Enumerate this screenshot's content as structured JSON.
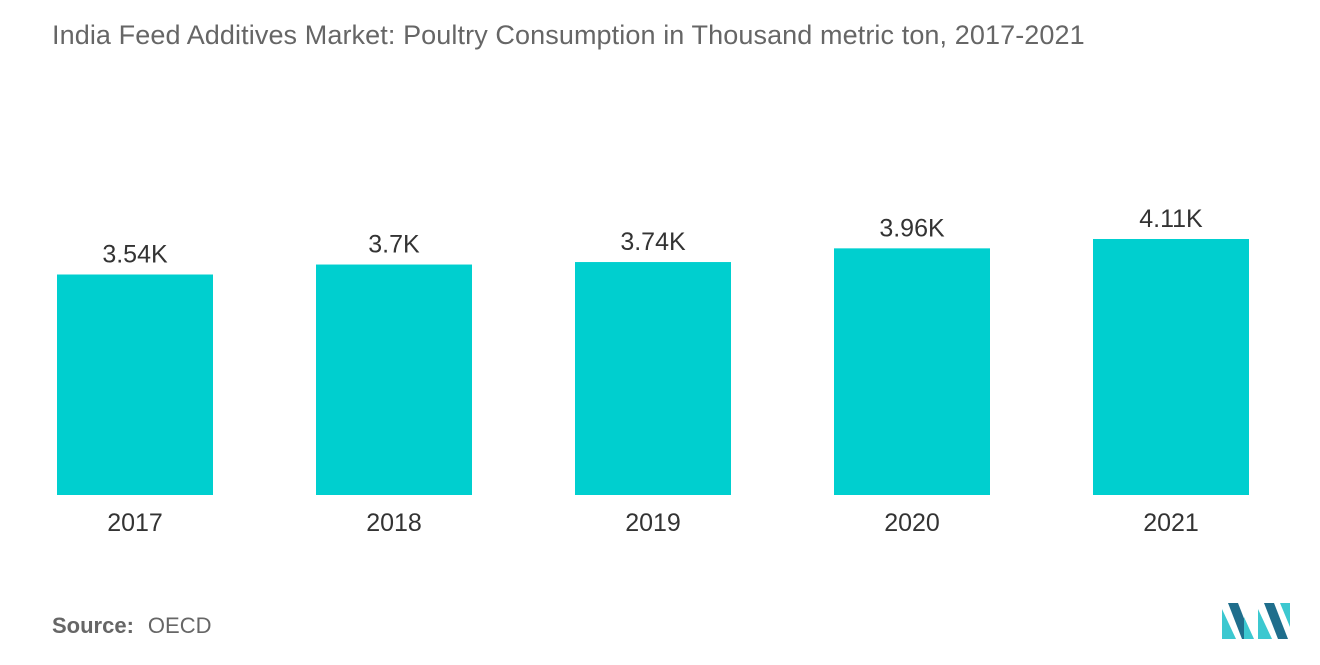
{
  "title": "India Feed Additives Market: Poultry Consumption in Thousand metric ton, 2017-2021",
  "source": {
    "label": "Source:",
    "value": "OECD"
  },
  "colors": {
    "bar": "#00cfcf",
    "text": "#666666",
    "label": "#333333",
    "logo_dark": "#1f6e8c",
    "logo_light": "#3cc8d0"
  },
  "icons": {
    "logo": "mordor-intelligence-logo"
  },
  "chart_data": {
    "type": "bar",
    "title": "India Feed Additives Market: Poultry Consumption in Thousand metric ton, 2017-2021",
    "categories": [
      "2017",
      "2018",
      "2019",
      "2020",
      "2021"
    ],
    "values": [
      3.54,
      3.7,
      3.74,
      3.96,
      4.11
    ],
    "value_labels": [
      "3.54K",
      "3.7K",
      "3.74K",
      "3.96K",
      "4.11K"
    ],
    "xlabel": "",
    "ylabel": "",
    "ylim": [
      0,
      4.11
    ],
    "grid": false,
    "legend": "none"
  }
}
